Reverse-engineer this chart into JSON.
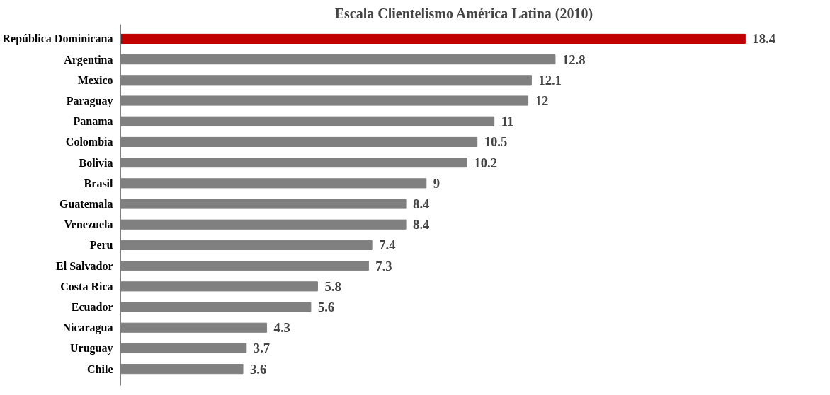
{
  "chart_data": {
    "type": "bar",
    "orientation": "horizontal",
    "title": "Escala Clientelismo América Latina (2010)",
    "categories": [
      "República Dominicana",
      "Argentina",
      "Mexico",
      "Paraguay",
      "Panama",
      "Colombia",
      "Bolivia",
      "Brasil",
      "Guatemala",
      "Venezuela",
      "Peru",
      "El Salvador",
      "Costa Rica",
      "Ecuador",
      "Nicaragua",
      "Uruguay",
      "Chile"
    ],
    "values": [
      18.4,
      12.8,
      12.1,
      12,
      11,
      10.5,
      10.2,
      9,
      8.4,
      8.4,
      7.4,
      7.3,
      5.8,
      5.6,
      4.3,
      3.7,
      3.6
    ],
    "colors": [
      "#c00000",
      "#808080",
      "#808080",
      "#808080",
      "#808080",
      "#808080",
      "#808080",
      "#808080",
      "#808080",
      "#808080",
      "#808080",
      "#808080",
      "#808080",
      "#808080",
      "#808080",
      "#808080",
      "#808080"
    ],
    "data_labels": true
  }
}
